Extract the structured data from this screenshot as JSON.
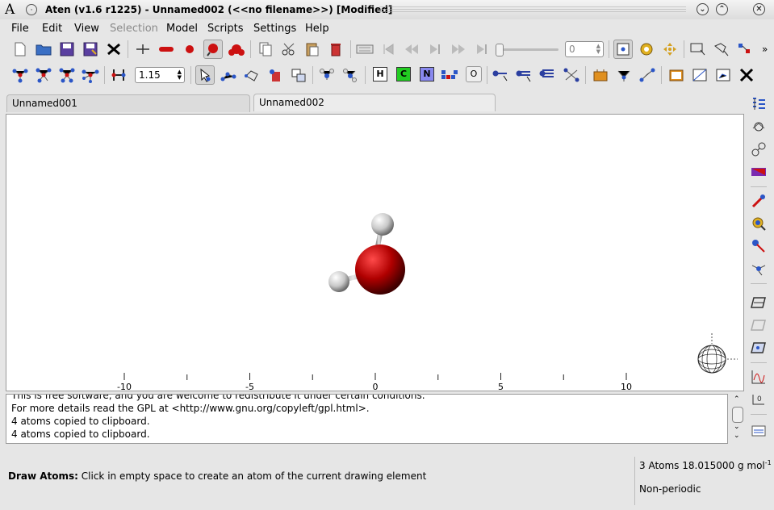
{
  "window": {
    "logo": "A",
    "title": "Aten (v1.6 r1225) - Unnamed002 (<<no filename>>) [Modified]"
  },
  "menu": {
    "items": [
      {
        "label": "File",
        "enabled": true
      },
      {
        "label": "Edit",
        "enabled": true
      },
      {
        "label": "View",
        "enabled": true
      },
      {
        "label": "Selection",
        "enabled": false
      },
      {
        "label": "Model",
        "enabled": true
      },
      {
        "label": "Scripts",
        "enabled": true
      },
      {
        "label": "Settings",
        "enabled": true
      },
      {
        "label": "Help",
        "enabled": true
      }
    ]
  },
  "toolbar1": {
    "frame_value": "0",
    "overflow": "»",
    "icons": [
      "new-file-icon",
      "open-file-icon",
      "save-icon",
      "save-as-icon",
      "close-model-icon",
      "stick-style-icon",
      "tube-style-icon",
      "sphere-style-icon",
      "scaled-style-icon",
      "ownstyle-icon",
      "copy-icon",
      "cut-icon",
      "paste-icon",
      "delete-icon",
      "trajectory-icon",
      "first-frame-icon",
      "previous-frame-icon",
      "play-icon",
      "next-frame-icon",
      "last-frame-icon",
      "frame-slider",
      "select-mode-icon",
      "rotate-mode-icon",
      "translate-mode-icon",
      "select-box-icon",
      "select-lasso-icon",
      "select-molecule-icon"
    ]
  },
  "toolbar2": {
    "bond_tolerance": "1.15",
    "elements": {
      "h": "H",
      "c": "C",
      "n": "N",
      "o": "O"
    },
    "colors": {
      "carbon": "#22cc22",
      "nitrogen": "#8888ee"
    }
  },
  "tabs": [
    {
      "label": "Unnamed001",
      "active": false
    },
    {
      "label": "Unnamed002",
      "active": true
    }
  ],
  "viewer": {
    "axis": {
      "ticks": [
        "-10",
        "-5",
        "0",
        "5",
        "10"
      ]
    },
    "molecule": "H2O",
    "colors": {
      "oxygen": "#b00000",
      "hydrogen": "#d0d0d0"
    }
  },
  "log": {
    "lines": [
      "This is free software, and you are welcome to redistribute it under certain conditions.",
      "For more details read the GPL at <http://www.gnu.org/copyleft/gpl.html>.",
      "4 atoms copied to clipboard.",
      "4 atoms copied to clipboard."
    ]
  },
  "status": {
    "mode_label": "Draw Atoms:",
    "mode_description": "Click in empty space to create an atom of the current drawing element",
    "atom_info": "3 Atoms 18.015000 g mol",
    "atom_info_sup": "-1",
    "periodicity": "Non-periodic"
  }
}
